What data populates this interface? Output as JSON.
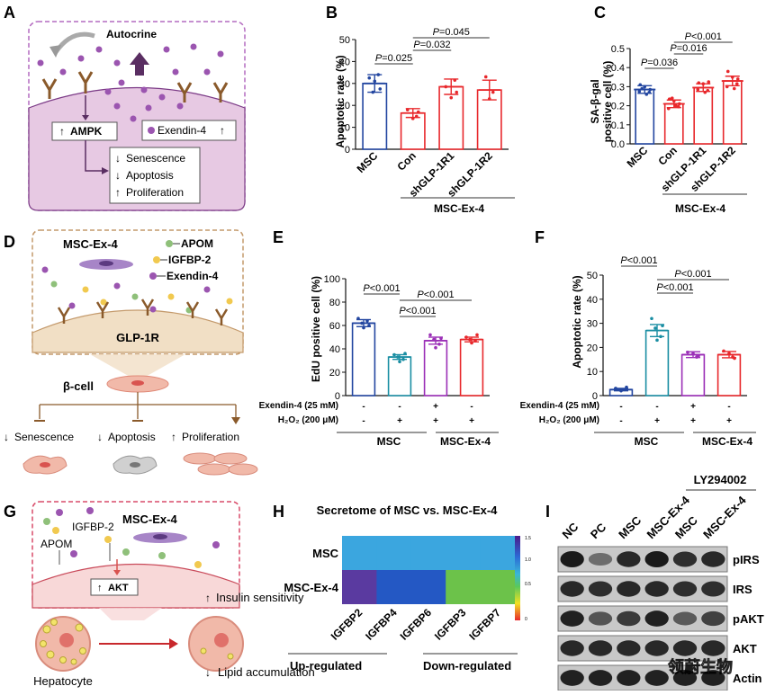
{
  "panels": {
    "A": {
      "letter": "A",
      "autocrine": "Autocrine",
      "ampk": "AMPK",
      "exendin": "Exendin-4",
      "outcomes": [
        "Senescence",
        "Apoptosis",
        "Proliferation"
      ]
    },
    "B": {
      "letter": "B",
      "ylabel": "Apoptotic rate (%)",
      "yticks": [
        0,
        10,
        20,
        30,
        40,
        50
      ],
      "categories": [
        "MSC",
        "Con",
        "shGLP-1R1",
        "shGLP-1R2"
      ],
      "values": [
        30,
        16.5,
        28.5,
        27
      ],
      "errors": [
        4,
        2,
        3.5,
        4.5
      ],
      "group_label": "MSC-Ex-4",
      "pvalues": [
        "P=0.025",
        "P=0.032",
        "P=0.045"
      ]
    },
    "C": {
      "letter": "C",
      "ylabel_line1": "SA-β-gal",
      "ylabel_line2": "positive cell (%)",
      "yticks": [
        "0.0",
        "0.1",
        "0.2",
        "0.3",
        "0.4",
        "0.5"
      ],
      "categories": [
        "MSC",
        "Con",
        "shGLP-1R1",
        "shGLP-1R2"
      ],
      "values": [
        0.285,
        0.21,
        0.295,
        0.33
      ],
      "errors": [
        0.02,
        0.02,
        0.02,
        0.025
      ],
      "group_label": "MSC-Ex-4",
      "pvalues": [
        "P=0.036",
        "P=0.016",
        "P<0.001"
      ]
    },
    "D": {
      "letter": "D",
      "source": "MSC-Ex-4",
      "legend": [
        "APOM",
        "IGFBP-2",
        "Exendin-4"
      ],
      "receptor": "GLP-1R",
      "cell": "β-cell",
      "outcomes": [
        "Senescence",
        "Apoptosis",
        "Proliferation"
      ]
    },
    "E": {
      "letter": "E",
      "ylabel": "EdU positive cell (%)",
      "yticks": [
        0,
        20,
        40,
        60,
        80,
        100
      ],
      "values": [
        62,
        33,
        47,
        48
      ],
      "errors": [
        3,
        2,
        3,
        2
      ],
      "row1_label": "Exendin-4 (25 mM)",
      "row1": [
        "-",
        "-",
        "+",
        "-"
      ],
      "row2_label": "H₂O₂ (200 μM)",
      "row2": [
        "-",
        "+",
        "+",
        "+"
      ],
      "group1": "MSC",
      "group2": "MSC-Ex-4",
      "pvalues": [
        "P<0.001",
        "P<0.001",
        "P<0.001"
      ]
    },
    "F": {
      "letter": "F",
      "ylabel": "Apoptotic rate (%)",
      "yticks": [
        0,
        10,
        20,
        30,
        40,
        50
      ],
      "values": [
        2.5,
        27,
        17,
        17
      ],
      "errors": [
        0.5,
        2.5,
        1.2,
        1.3
      ],
      "row1_label": "Exendin-4 (25 mM)",
      "row1": [
        "-",
        "-",
        "+",
        "-"
      ],
      "row2_label": "H₂O₂ (200 μM)",
      "row2": [
        "-",
        "+",
        "+",
        "+"
      ],
      "group1": "MSC",
      "group2": "MSC-Ex-4",
      "pvalues": [
        "P<0.001",
        "P<0.001",
        "P<0.001"
      ]
    },
    "G": {
      "letter": "G",
      "source": "MSC-Ex-4",
      "igfbp": "IGFBP-2",
      "apom": "APOM",
      "akt": "AKT",
      "insulin": "Insulin sensitivity",
      "lipid": "Lipid accumulation",
      "cell": "Hepatocyte"
    },
    "H": {
      "letter": "H",
      "title": "Secretome of MSC vs. MSC-Ex-4",
      "rows": [
        "MSC",
        "MSC-Ex-4"
      ],
      "columns": [
        "IGFBP2",
        "IGFBP4",
        "IGFBP6",
        "IGFBP3",
        "IGFBP7"
      ],
      "values": [
        [
          1.0,
          1.0,
          1.0,
          1.0,
          1.0
        ],
        [
          1.4,
          1.25,
          1.25,
          0.75,
          0.72
        ]
      ],
      "scale_labels": [
        "1.5",
        "1.0",
        "0.5",
        "0"
      ],
      "up_label": "Up-regulated",
      "down_label": "Down-regulated"
    },
    "I": {
      "letter": "I",
      "inhibitor": "LY294002",
      "lanes": [
        "NC",
        "PC",
        "MSC",
        "MSC-Ex-4",
        "MSC",
        "MSC-Ex-4"
      ],
      "bands": [
        "pIRS",
        "IRS",
        "pAKT",
        "AKT",
        "Actin"
      ],
      "watermark": "领蔚生物"
    }
  },
  "colors": {
    "blue": "#2346a0",
    "red": "#e8282c",
    "teal": "#1a8ea3",
    "purple": "#9b2fb7",
    "cell_pink": "#e7c9e3",
    "tan": "#f1dfc5"
  }
}
